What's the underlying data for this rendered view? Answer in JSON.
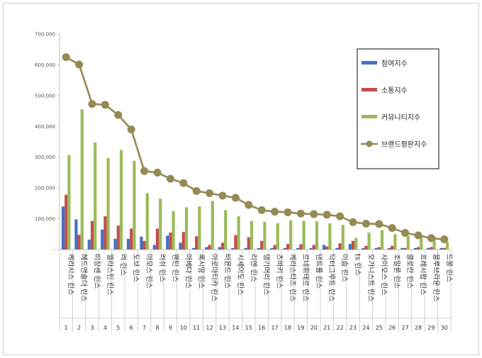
{
  "chart_data": {
    "type": "bar",
    "title": "",
    "xlabel": "",
    "ylabel": "",
    "ylim": [
      0,
      700000
    ],
    "yticks": [
      "-",
      "100,000",
      "200,000",
      "300,000",
      "400,000",
      "500,000",
      "600,000",
      "700,000"
    ],
    "grid": false,
    "legend_position": "top-right",
    "index_labels": [
      "1",
      "2",
      "3",
      "4",
      "5",
      "6",
      "7",
      "8",
      "9",
      "10",
      "11",
      "12",
      "13",
      "14",
      "15",
      "16",
      "17",
      "18",
      "19",
      "20",
      "21",
      "22",
      "23",
      "24",
      "25",
      "26",
      "27",
      "28",
      "29",
      "30"
    ],
    "categories": [
      "케라시스 린스",
      "헤드앤숄더 린스",
      "미장센 린스",
      "엘라스틴 린스",
      "려 린스",
      "도브 린스",
      "아모스 린스",
      "러쉬 린스",
      "팬틴 린스",
      "아베다 린스",
      "록시땅 린스",
      "아로마티카 린스",
      "비욘드 린스",
      "시세이도 린스",
      "리엔 린스",
      "댕기머리 린스",
      "츠바키 린스",
      "케라스타즈 린스",
      "르네휘테르 린스",
      "댄트롤 린스",
      "닥터그루트 린스",
      "이솝 린스",
      "ts 린스",
      "오가니스트 린스",
      "사이오스 린스",
      "조말론 린스",
      "클로란 린스",
      "프레시팝 린스",
      "블루브라운 린스",
      "드봉 린스"
    ],
    "series": [
      {
        "name": "참여지수",
        "type": "bar",
        "color": "#4472c4",
        "values": [
          140000,
          98000,
          32000,
          65000,
          35000,
          35000,
          42000,
          15000,
          45000,
          22000,
          5000,
          8000,
          8000,
          5000,
          5000,
          5000,
          5000,
          5000,
          5000,
          5000,
          15000,
          5000,
          18000,
          5000,
          5000,
          5000,
          5000,
          5000,
          5000,
          5000
        ]
      },
      {
        "name": "소통지수",
        "type": "bar",
        "color": "#c0504d",
        "values": [
          178000,
          48000,
          93000,
          108000,
          78000,
          68000,
          28000,
          68000,
          55000,
          57000,
          43000,
          15000,
          22000,
          47000,
          40000,
          28000,
          15000,
          18000,
          17000,
          15000,
          10000,
          20000,
          28000,
          12000,
          8000,
          12000,
          5000,
          8000,
          8000,
          5000
        ]
      },
      {
        "name": "커뮤니티지수",
        "type": "bar",
        "color": "#9bbb59",
        "values": [
          307000,
          455000,
          348000,
          297000,
          323000,
          288000,
          183000,
          165000,
          125000,
          137000,
          140000,
          158000,
          128000,
          108000,
          93000,
          90000,
          85000,
          95000,
          93000,
          92000,
          85000,
          80000,
          38000,
          55000,
          63000,
          50000,
          45000,
          42000,
          42000,
          25000
        ]
      },
      {
        "name": "브랜드평판지수",
        "type": "line",
        "color": "#948a54",
        "values": [
          625000,
          601000,
          473000,
          470000,
          437000,
          390000,
          255000,
          250000,
          230000,
          216000,
          190000,
          183000,
          175000,
          168000,
          145000,
          128000,
          123000,
          121000,
          117000,
          115000,
          113000,
          108000,
          89000,
          84000,
          83000,
          70000,
          54000,
          46000,
          37000,
          33000
        ]
      }
    ]
  }
}
